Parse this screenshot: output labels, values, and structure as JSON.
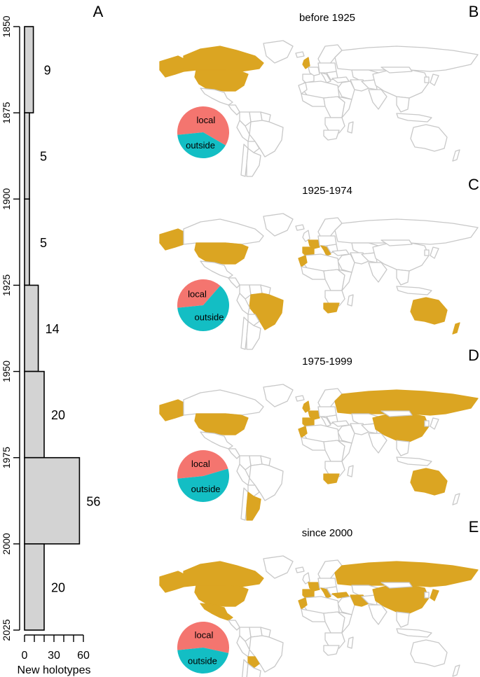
{
  "colors": {
    "bar_fill": "#d3d3d3",
    "bar_stroke": "#000000",
    "highlight": "#dba522",
    "land_outline": "#c8c8c8",
    "local": "#f4756f",
    "outside": "#13bec4"
  },
  "chart_data": [
    {
      "type": "bar",
      "panel_label": "A",
      "orientation": "horizontal",
      "title": "",
      "xlabel": "New holotypes",
      "ylabel": "",
      "xlim": [
        0,
        60
      ],
      "xticks": [
        0,
        30,
        60
      ],
      "ylim": [
        1850,
        2025
      ],
      "yticks": [
        1850,
        1875,
        1900,
        1925,
        1950,
        1975,
        2000,
        2025
      ],
      "bins": [
        {
          "start": 1850,
          "end": 1875,
          "value": 9
        },
        {
          "start": 1875,
          "end": 1900,
          "value": 5
        },
        {
          "start": 1900,
          "end": 1925,
          "value": 5
        },
        {
          "start": 1925,
          "end": 1950,
          "value": 14
        },
        {
          "start": 1950,
          "end": 1975,
          "value": 20
        },
        {
          "start": 1975,
          "end": 2000,
          "value": 56
        },
        {
          "start": 2000,
          "end": 2025,
          "value": 20
        }
      ]
    },
    {
      "type": "pie",
      "panel_label": "B",
      "title": "before 1925",
      "labels": [
        "local",
        "outside"
      ],
      "values": [
        0.6,
        0.4
      ],
      "highlighted_regions": [
        "Canada",
        "United States",
        "Alaska",
        "British Isles"
      ]
    },
    {
      "type": "pie",
      "panel_label": "C",
      "title": "1925-1974",
      "labels": [
        "local",
        "outside"
      ],
      "values": [
        0.38,
        0.62
      ],
      "highlighted_regions": [
        "Alaska",
        "United States",
        "Brazil",
        "Iberia",
        "France",
        "Italy",
        "Morocco",
        "South Africa",
        "Australia",
        "New Zealand"
      ]
    },
    {
      "type": "pie",
      "panel_label": "D",
      "title": "1975-1999",
      "labels": [
        "local",
        "outside"
      ],
      "values": [
        0.47,
        0.53
      ],
      "highlighted_regions": [
        "Alaska",
        "United States",
        "Argentina",
        "Iberia",
        "France",
        "British Isles",
        "Morocco",
        "Russia",
        "China",
        "South Africa",
        "Australia"
      ]
    },
    {
      "type": "pie",
      "panel_label": "E",
      "title": "since 2000",
      "labels": [
        "local",
        "outside"
      ],
      "values": [
        0.55,
        0.45
      ],
      "highlighted_regions": [
        "Alaska",
        "Canada",
        "United States",
        "Mexico",
        "Bolivia",
        "Iberia",
        "France",
        "Italy",
        "Morocco",
        "Turkey",
        "Russia",
        "China",
        "Iran",
        "Japan"
      ]
    }
  ]
}
